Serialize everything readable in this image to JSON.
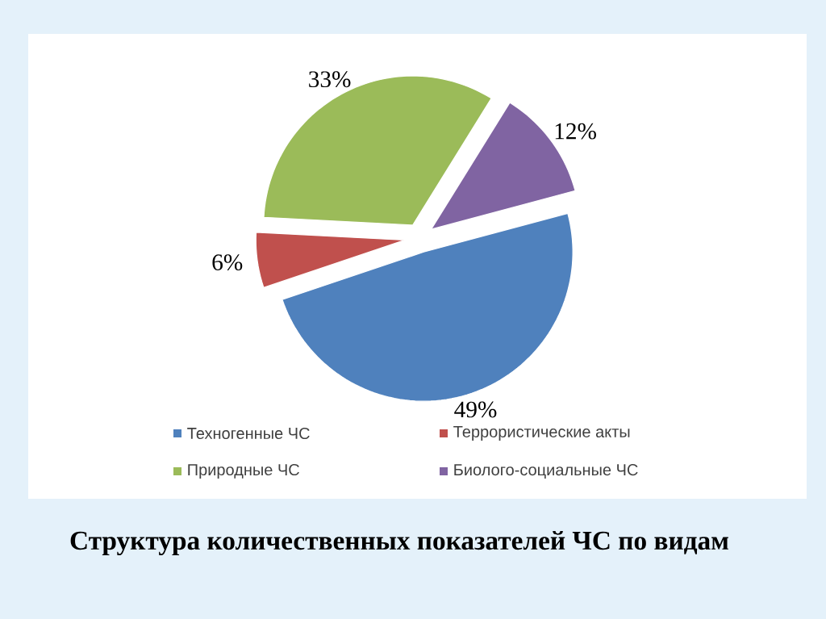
{
  "chart_data": {
    "type": "pie",
    "title": "Структура количественных показателей ЧС по видам",
    "categories": [
      "Техногенные ЧС",
      "Террористические  акты",
      "Природные ЧС",
      "Биолого-социальные ЧС"
    ],
    "values": [
      49,
      6,
      33,
      12
    ],
    "colors": [
      "#4f81bd",
      "#c0504d",
      "#9bbb59",
      "#8064a2"
    ],
    "value_labels": [
      "49%",
      "6%",
      "33%",
      "12%"
    ],
    "legend": "bottom"
  }
}
